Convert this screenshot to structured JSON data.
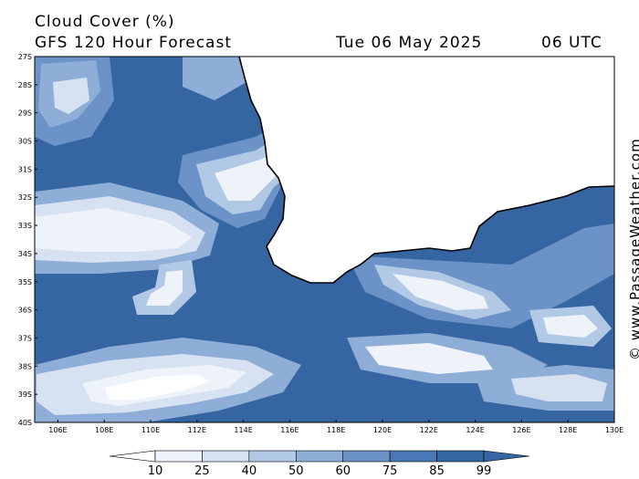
{
  "header": {
    "title": "Cloud Cover (%)",
    "model": "GFS 120 Hour Forecast",
    "date": "Tue 06 May 2025",
    "time": "06 UTC"
  },
  "credit": "© www.PassageWeather.com",
  "map": {
    "lat_labels": [
      "27S",
      "28S",
      "29S",
      "30S",
      "31S",
      "32S",
      "33S",
      "34S",
      "35S",
      "36S",
      "37S",
      "38S",
      "39S",
      "40S"
    ],
    "lon_labels": [
      "106E",
      "108E",
      "110E",
      "112E",
      "114E",
      "116E",
      "118E",
      "120E",
      "122E",
      "124E",
      "126E",
      "128E",
      "130E"
    ],
    "lat_range": [
      -27,
      -40
    ],
    "lon_range": [
      105,
      130
    ],
    "colors": {
      "land": "#ffffff",
      "level_25": "#eef3fa",
      "level_40": "#d6e2f1",
      "level_50": "#b2c9e6",
      "level_60": "#8eaed8",
      "level_75": "#6b93c7",
      "level_85": "#4a78b6",
      "level_99": "#3566a2",
      "coast": "#000000"
    }
  },
  "legend": {
    "labels": [
      "10",
      "25",
      "40",
      "50",
      "60",
      "75",
      "85",
      "99"
    ],
    "colors": [
      "#ffffff",
      "#eef3fa",
      "#d6e2f1",
      "#b2c9e6",
      "#8eaed8",
      "#6b93c7",
      "#4a78b6",
      "#3566a2"
    ]
  }
}
